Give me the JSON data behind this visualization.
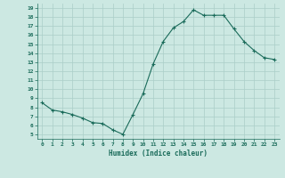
{
  "xlabel": "Humidex (Indice chaleur)",
  "x_values": [
    0,
    1,
    2,
    3,
    4,
    5,
    6,
    7,
    8,
    9,
    10,
    11,
    12,
    13,
    14,
    15,
    16,
    17,
    18,
    19,
    20,
    21,
    22,
    23
  ],
  "y_values": [
    8.5,
    7.7,
    7.5,
    7.2,
    6.8,
    6.3,
    6.2,
    5.5,
    5.0,
    7.2,
    9.5,
    12.8,
    15.3,
    16.8,
    17.5,
    18.8,
    18.2,
    18.2,
    18.2,
    16.7,
    15.3,
    14.3,
    13.5,
    13.3
  ],
  "line_color": "#1a6b5a",
  "marker": "+",
  "marker_size": 3,
  "bg_color": "#cce8e2",
  "grid_color": "#aacec8",
  "tick_label_color": "#1a6b5a",
  "xlabel_color": "#1a6b5a",
  "ylim": [
    4.5,
    19.5
  ],
  "xlim": [
    -0.5,
    23.5
  ],
  "yticks": [
    5,
    6,
    7,
    8,
    9,
    10,
    11,
    12,
    13,
    14,
    15,
    16,
    17,
    18,
    19
  ],
  "xticks": [
    0,
    1,
    2,
    3,
    4,
    5,
    6,
    7,
    8,
    9,
    10,
    11,
    12,
    13,
    14,
    15,
    16,
    17,
    18,
    19,
    20,
    21,
    22,
    23
  ],
  "xtick_labels": [
    "0",
    "1",
    "2",
    "3",
    "4",
    "5",
    "6",
    "7",
    "8",
    "9",
    "10",
    "11",
    "12",
    "13",
    "14",
    "15",
    "16",
    "17",
    "18",
    "19",
    "20",
    "21",
    "22",
    "23"
  ],
  "ytick_labels": [
    "5",
    "6",
    "7",
    "8",
    "9",
    "10",
    "11",
    "12",
    "13",
    "14",
    "15",
    "16",
    "17",
    "18",
    "19"
  ]
}
